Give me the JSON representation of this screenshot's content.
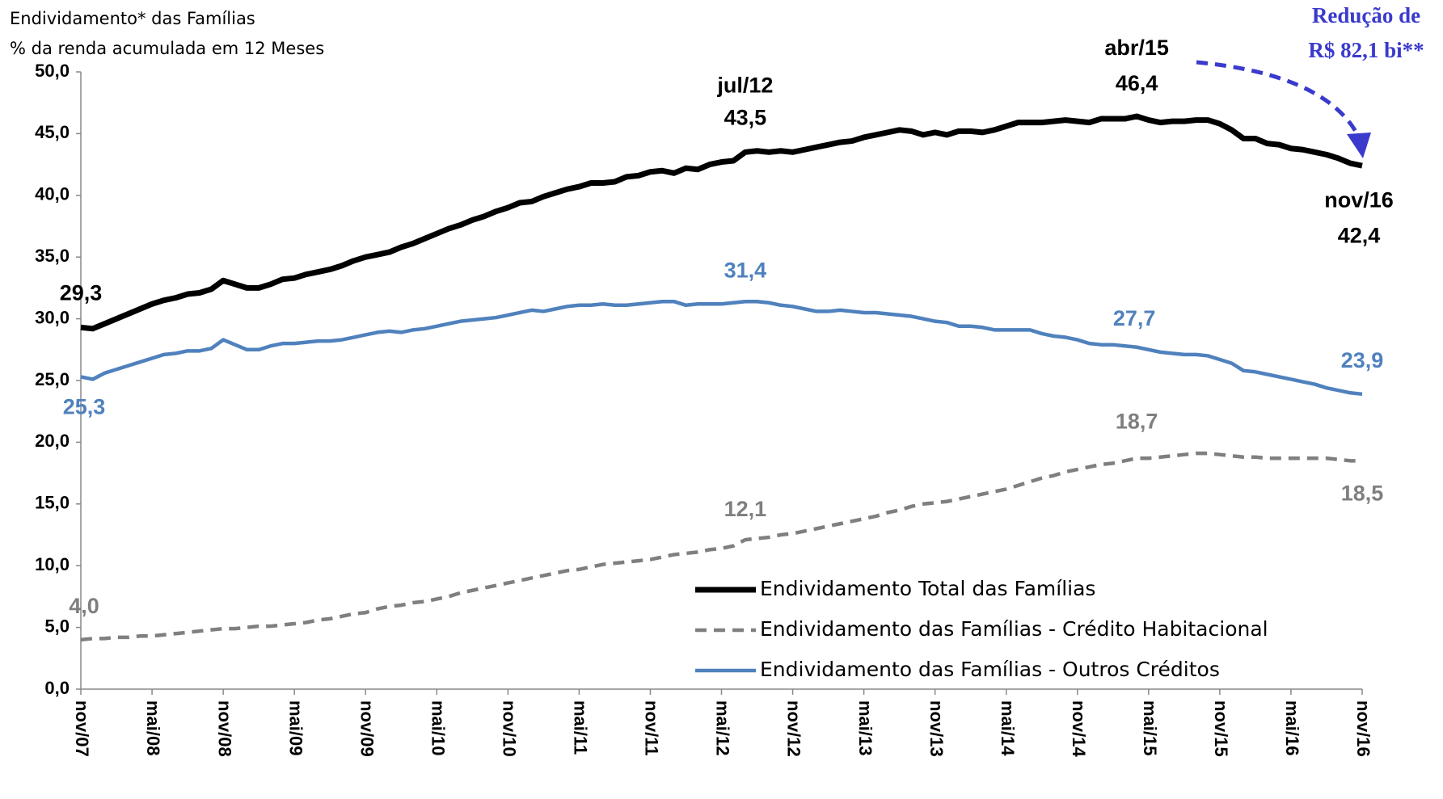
{
  "chart_data": {
    "type": "line",
    "title": "Endividamento* das Famílias",
    "subtitle": "% da renda acumulada em 12 Meses",
    "categories": [
      "nov/07",
      null,
      null,
      null,
      null,
      null,
      "mai/08",
      null,
      null,
      null,
      null,
      null,
      "nov/08",
      null,
      null,
      null,
      null,
      null,
      "mai/09",
      null,
      null,
      null,
      null,
      null,
      "nov/09",
      null,
      null,
      null,
      null,
      null,
      "mai/10",
      null,
      null,
      null,
      null,
      null,
      "nov/10",
      null,
      null,
      null,
      null,
      null,
      "mai/11",
      null,
      null,
      null,
      null,
      null,
      "nov/11",
      null,
      null,
      null,
      null,
      null,
      "mai/12",
      null,
      null,
      null,
      null,
      null,
      "nov/12",
      null,
      null,
      null,
      null,
      null,
      "mai/13",
      null,
      null,
      null,
      null,
      null,
      "nov/13",
      null,
      null,
      null,
      null,
      null,
      "mai/14",
      null,
      null,
      null,
      null,
      null,
      "nov/14",
      null,
      null,
      null,
      null,
      null,
      "mai/15",
      null,
      null,
      null,
      null,
      null,
      "nov/15",
      null,
      null,
      null,
      null,
      null,
      "mai/16",
      null,
      null,
      null,
      null,
      null,
      "nov/16"
    ],
    "series": [
      {
        "name": "Endividamento Total das Famílias",
        "color": "#000000",
        "dashed": false,
        "values": [
          29.3,
          29.2,
          29.6,
          30.0,
          30.4,
          30.8,
          31.2,
          31.5,
          31.7,
          32.0,
          32.1,
          32.4,
          33.1,
          32.8,
          32.5,
          32.5,
          32.8,
          33.2,
          33.3,
          33.6,
          33.8,
          34.0,
          34.3,
          34.7,
          35.0,
          35.2,
          35.4,
          35.8,
          36.1,
          36.5,
          36.9,
          37.3,
          37.6,
          38.0,
          38.3,
          38.7,
          39.0,
          39.4,
          39.5,
          39.9,
          40.2,
          40.5,
          40.7,
          41.0,
          41.0,
          41.1,
          41.5,
          41.6,
          41.9,
          42.0,
          41.8,
          42.2,
          42.1,
          42.5,
          42.7,
          42.8,
          43.5,
          43.6,
          43.5,
          43.6,
          43.5,
          43.7,
          43.9,
          44.1,
          44.3,
          44.4,
          44.7,
          44.9,
          45.1,
          45.3,
          45.2,
          44.9,
          45.1,
          44.9,
          45.2,
          45.2,
          45.1,
          45.3,
          45.6,
          45.9,
          45.9,
          45.9,
          46.0,
          46.1,
          46.0,
          45.9,
          46.2,
          46.2,
          46.2,
          46.4,
          46.1,
          45.9,
          46.0,
          46.0,
          46.1,
          46.1,
          45.8,
          45.3,
          44.6,
          44.6,
          44.2,
          44.1,
          43.8,
          43.7,
          43.5,
          43.3,
          43.0,
          42.6,
          42.4
        ],
        "value_labels": [
          "29,3",
          null,
          null,
          null,
          null,
          null,
          null,
          null,
          null,
          null,
          null,
          null,
          null,
          null,
          null,
          null,
          null,
          null,
          null,
          null,
          null,
          null,
          null,
          null,
          null,
          null,
          null,
          null,
          null,
          null,
          null,
          null,
          null,
          null,
          null,
          null,
          null,
          null,
          null,
          null,
          null,
          null,
          null,
          null,
          null,
          null,
          null,
          null,
          null,
          null,
          null,
          null,
          null,
          null,
          null,
          null,
          "43,5",
          null,
          null,
          null,
          null,
          null,
          null,
          null,
          null,
          null,
          null,
          null,
          null,
          null,
          null,
          null,
          null,
          null,
          null,
          null,
          null,
          null,
          null,
          null,
          null,
          null,
          null,
          null,
          null,
          null,
          null,
          null,
          null,
          "46,4",
          null,
          null,
          null,
          null,
          null,
          null,
          null,
          null,
          null,
          null,
          null,
          null,
          null,
          null,
          null,
          null,
          null,
          null,
          "42,4"
        ]
      },
      {
        "name": "Endividamento das Famílias - Crédito Habitacional",
        "color": "#7f7f7f",
        "dashed": true,
        "values": [
          4.0,
          4.1,
          4.1,
          4.2,
          4.2,
          4.3,
          4.3,
          4.4,
          4.5,
          4.6,
          4.7,
          4.8,
          4.9,
          4.9,
          5.0,
          5.1,
          5.1,
          5.2,
          5.3,
          5.4,
          5.6,
          5.7,
          5.9,
          6.1,
          6.2,
          6.5,
          6.7,
          6.8,
          7.0,
          7.1,
          7.3,
          7.5,
          7.8,
          8.0,
          8.2,
          8.4,
          8.6,
          8.8,
          9.0,
          9.2,
          9.4,
          9.6,
          9.7,
          9.9,
          10.1,
          10.2,
          10.3,
          10.4,
          10.5,
          10.7,
          10.9,
          11.0,
          11.1,
          11.3,
          11.4,
          11.6,
          12.1,
          12.2,
          12.3,
          12.5,
          12.6,
          12.8,
          13.0,
          13.2,
          13.4,
          13.6,
          13.8,
          14.0,
          14.3,
          14.5,
          14.8,
          15.0,
          15.1,
          15.2,
          15.4,
          15.6,
          15.8,
          16.0,
          16.2,
          16.5,
          16.8,
          17.1,
          17.3,
          17.6,
          17.8,
          18.0,
          18.2,
          18.3,
          18.5,
          18.7,
          18.7,
          18.8,
          18.9,
          19.0,
          19.1,
          19.1,
          19.0,
          18.9,
          18.8,
          18.8,
          18.7,
          18.7,
          18.7,
          18.7,
          18.7,
          18.7,
          18.6,
          18.5,
          18.5
        ],
        "value_labels": [
          "4,0",
          null,
          null,
          null,
          null,
          null,
          null,
          null,
          null,
          null,
          null,
          null,
          null,
          null,
          null,
          null,
          null,
          null,
          null,
          null,
          null,
          null,
          null,
          null,
          null,
          null,
          null,
          null,
          null,
          null,
          null,
          null,
          null,
          null,
          null,
          null,
          null,
          null,
          null,
          null,
          null,
          null,
          null,
          null,
          null,
          null,
          null,
          null,
          null,
          null,
          null,
          null,
          null,
          null,
          null,
          null,
          "12,1",
          null,
          null,
          null,
          null,
          null,
          null,
          null,
          null,
          null,
          null,
          null,
          null,
          null,
          null,
          null,
          null,
          null,
          null,
          null,
          null,
          null,
          null,
          null,
          null,
          null,
          null,
          null,
          null,
          null,
          null,
          null,
          null,
          "18,7",
          null,
          null,
          null,
          null,
          null,
          null,
          null,
          null,
          null,
          null,
          null,
          null,
          null,
          null,
          null,
          null,
          null,
          null,
          "18,5"
        ]
      },
      {
        "name": "Endividamento das Famílias - Outros Créditos",
        "color": "#4f81bd",
        "dashed": false,
        "values": [
          25.3,
          25.1,
          25.6,
          25.9,
          26.2,
          26.5,
          26.8,
          27.1,
          27.2,
          27.4,
          27.4,
          27.6,
          28.3,
          27.9,
          27.5,
          27.5,
          27.8,
          28.0,
          28.0,
          28.1,
          28.2,
          28.2,
          28.3,
          28.5,
          28.7,
          28.9,
          29.0,
          28.9,
          29.1,
          29.2,
          29.4,
          29.6,
          29.8,
          29.9,
          30.0,
          30.1,
          30.3,
          30.5,
          30.7,
          30.6,
          30.8,
          31.0,
          31.1,
          31.1,
          31.2,
          31.1,
          31.1,
          31.2,
          31.3,
          31.4,
          31.4,
          31.1,
          31.2,
          31.2,
          31.2,
          31.3,
          31.4,
          31.4,
          31.3,
          31.1,
          31.0,
          30.8,
          30.6,
          30.6,
          30.7,
          30.6,
          30.5,
          30.5,
          30.4,
          30.3,
          30.2,
          30.0,
          29.8,
          29.7,
          29.4,
          29.4,
          29.3,
          29.1,
          29.1,
          29.1,
          29.1,
          28.8,
          28.6,
          28.5,
          28.3,
          28.0,
          27.9,
          27.9,
          27.8,
          27.7,
          27.5,
          27.3,
          27.2,
          27.1,
          27.1,
          27.0,
          26.7,
          26.4,
          25.8,
          25.7,
          25.5,
          25.3,
          25.1,
          24.9,
          24.7,
          24.4,
          24.2,
          24.0,
          23.9
        ],
        "value_labels": [
          "25,3",
          null,
          null,
          null,
          null,
          null,
          null,
          null,
          null,
          null,
          null,
          null,
          null,
          null,
          null,
          null,
          null,
          null,
          null,
          null,
          null,
          null,
          null,
          null,
          null,
          null,
          null,
          null,
          null,
          null,
          null,
          null,
          null,
          null,
          null,
          null,
          null,
          null,
          null,
          null,
          null,
          null,
          null,
          null,
          null,
          null,
          null,
          null,
          null,
          null,
          null,
          null,
          null,
          null,
          null,
          null,
          "31,4",
          null,
          null,
          null,
          null,
          null,
          null,
          null,
          null,
          null,
          null,
          null,
          null,
          null,
          null,
          null,
          null,
          null,
          null,
          null,
          null,
          null,
          null,
          null,
          null,
          null,
          null,
          null,
          null,
          null,
          null,
          null,
          null,
          "27,7",
          null,
          null,
          null,
          null,
          null,
          null,
          null,
          null,
          null,
          null,
          null,
          null,
          null,
          null,
          null,
          null,
          null,
          null,
          "23,9"
        ]
      }
    ],
    "ylim": [
      0,
      50
    ],
    "yticks": [
      {
        "value": 0,
        "label": "0,0"
      },
      {
        "value": 5,
        "label": "5,0"
      },
      {
        "value": 10,
        "label": "10,0"
      },
      {
        "value": 15,
        "label": "15,0"
      },
      {
        "value": 20,
        "label": "20,0"
      },
      {
        "value": 25,
        "label": "25,0"
      },
      {
        "value": 30,
        "label": "30,0"
      },
      {
        "value": 35,
        "label": "35,0"
      },
      {
        "value": 40,
        "label": "40,0"
      },
      {
        "value": 45,
        "label": "45,0"
      },
      {
        "value": 50,
        "label": "50,0"
      }
    ],
    "grid": false,
    "legend": "lower-right",
    "annotations": [
      "jul/12",
      "abr/15",
      "nov/16",
      "Redução de",
      "R$ 82,1 bi**"
    ]
  }
}
